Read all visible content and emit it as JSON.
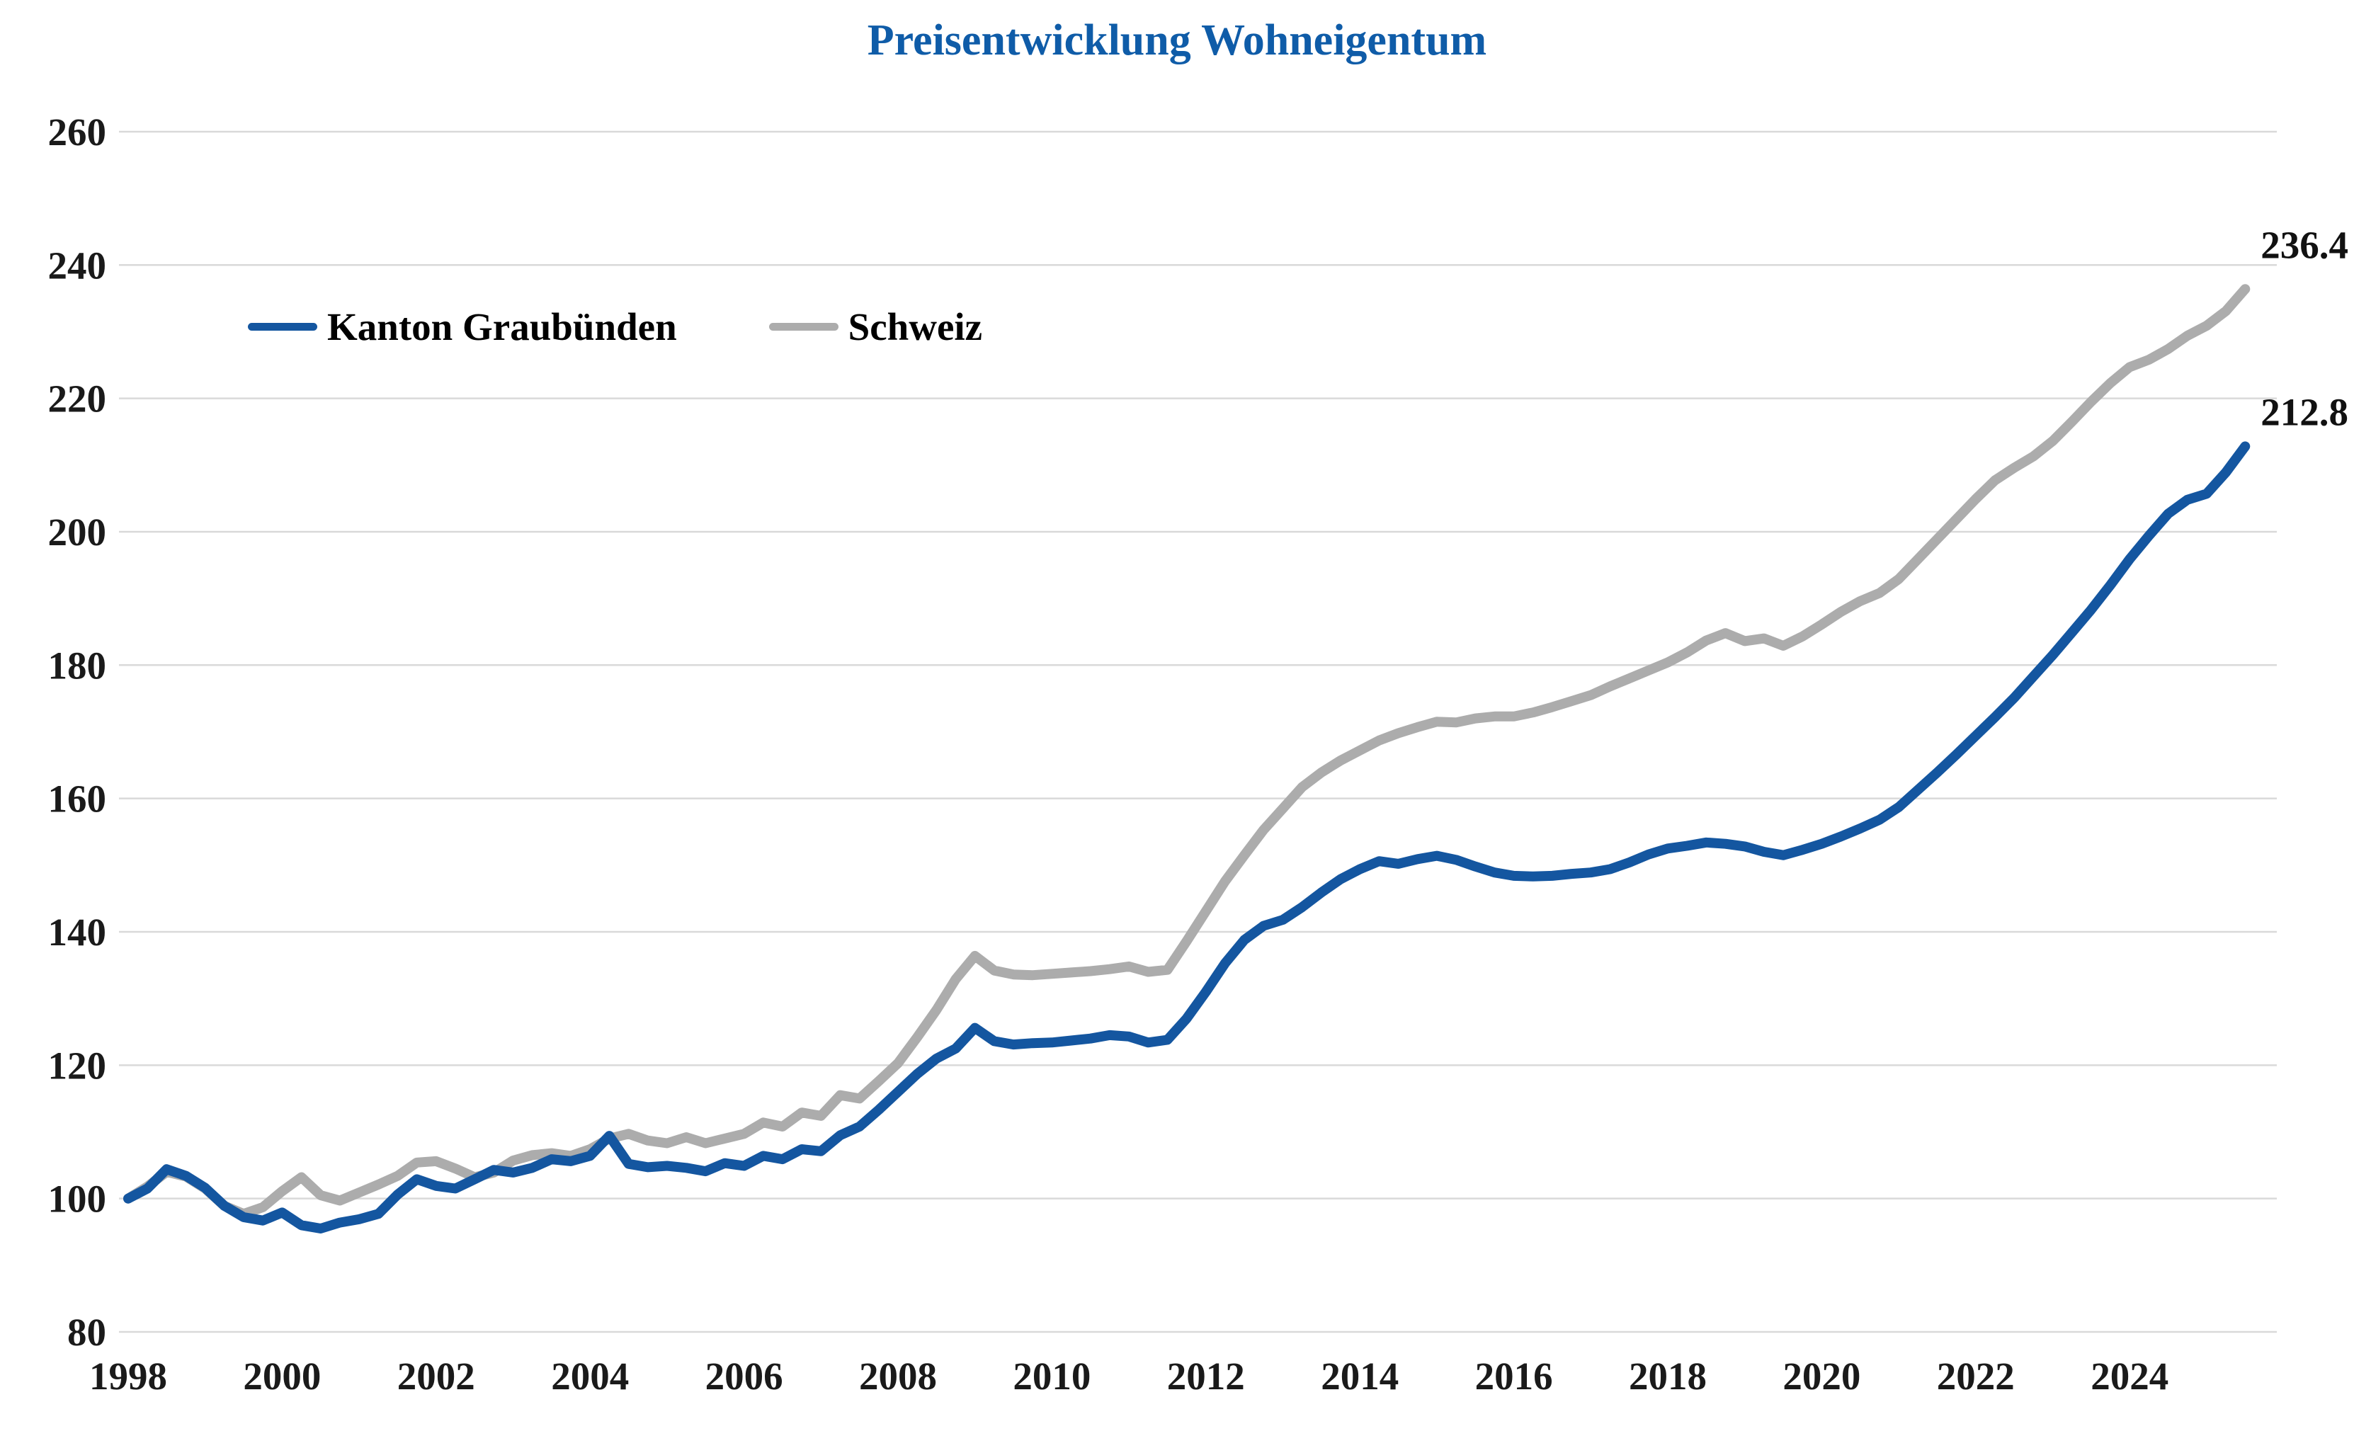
{
  "title": "Preisentwicklung Wohneigentum",
  "colors": {
    "title": "#0F5CA8",
    "graubuenden_line": "#1456A0",
    "schweiz_line": "#ACACAC",
    "gridline": "#D9D9D9",
    "tick_text": "#1A1A1A"
  },
  "legend": {
    "item1": "Kanton Graubünden",
    "item2": "Schweiz"
  },
  "end_labels": {
    "schweiz": "236.4",
    "graubuenden": "212.8"
  },
  "chart_data": {
    "type": "line",
    "title": "Preisentwicklung Wohneigentum",
    "x_start": 1998.0,
    "x_step": 0.25,
    "xlabel": "",
    "ylabel": "",
    "ylim": [
      80,
      260
    ],
    "y_ticks": [
      80,
      100,
      120,
      140,
      160,
      180,
      200,
      220,
      240,
      260
    ],
    "x_ticks": [
      1998,
      2000,
      2002,
      2004,
      2006,
      2008,
      2010,
      2012,
      2014,
      2016,
      2018,
      2020,
      2022,
      2024
    ],
    "grid": "horizontal",
    "legend_position": "inside-top-left",
    "series": [
      {
        "name": "Kanton Graubünden",
        "color": "#1456A0",
        "end_label": "212.8",
        "values": [
          100.0,
          101.5,
          104.4,
          103.4,
          101.6,
          98.9,
          97.2,
          96.7,
          97.9,
          96.0,
          95.5,
          96.4,
          96.9,
          97.7,
          100.6,
          102.9,
          101.9,
          101.5,
          102.9,
          104.3,
          103.9,
          104.6,
          105.9,
          105.6,
          106.4,
          109.4,
          105.2,
          104.7,
          104.9,
          104.6,
          104.1,
          105.3,
          104.9,
          106.4,
          105.9,
          107.4,
          107.1,
          109.5,
          110.8,
          113.3,
          116.0,
          118.7,
          121.0,
          122.5,
          125.6,
          123.6,
          123.1,
          123.3,
          123.4,
          123.7,
          124.0,
          124.5,
          124.3,
          123.4,
          123.8,
          127.0,
          131.0,
          135.3,
          138.8,
          140.9,
          141.8,
          143.7,
          145.9,
          147.9,
          149.4,
          150.6,
          150.2,
          150.9,
          151.4,
          150.8,
          149.8,
          148.9,
          148.4,
          148.3,
          148.4,
          148.7,
          148.9,
          149.4,
          150.4,
          151.6,
          152.5,
          152.9,
          153.4,
          153.2,
          152.8,
          152.0,
          151.5,
          152.3,
          153.2,
          154.3,
          155.5,
          156.8,
          158.7,
          161.3,
          163.9,
          166.6,
          169.4,
          172.2,
          175.1,
          178.3,
          181.5,
          184.9,
          188.3,
          192.0,
          195.9,
          199.4,
          202.7,
          204.8,
          205.7,
          208.9,
          212.8
        ]
      },
      {
        "name": "Schweiz",
        "color": "#ACACAC",
        "end_label": "236.4",
        "values": [
          100.0,
          101.8,
          104.0,
          103.3,
          101.5,
          98.9,
          97.7,
          98.7,
          101.1,
          103.2,
          100.5,
          99.7,
          100.9,
          102.1,
          103.4,
          105.4,
          105.6,
          104.5,
          103.2,
          103.9,
          105.7,
          106.5,
          106.8,
          106.4,
          107.4,
          109.0,
          109.7,
          108.7,
          108.3,
          109.2,
          108.3,
          109.0,
          109.7,
          111.4,
          110.8,
          112.9,
          112.4,
          115.5,
          115.0,
          117.6,
          120.3,
          124.2,
          128.3,
          132.9,
          136.4,
          134.2,
          133.6,
          133.5,
          133.7,
          133.9,
          134.1,
          134.4,
          134.8,
          134.0,
          134.3,
          138.6,
          143.1,
          147.6,
          151.5,
          155.3,
          158.5,
          161.7,
          163.9,
          165.7,
          167.2,
          168.7,
          169.8,
          170.7,
          171.5,
          171.4,
          172.0,
          172.3,
          172.3,
          172.9,
          173.7,
          174.6,
          175.5,
          176.8,
          178.0,
          179.2,
          180.4,
          181.9,
          183.7,
          184.8,
          183.6,
          184.0,
          182.9,
          184.3,
          186.1,
          188.0,
          189.6,
          190.8,
          192.9,
          195.9,
          198.9,
          201.9,
          204.9,
          207.7,
          209.6,
          211.3,
          213.6,
          216.5,
          219.5,
          222.3,
          224.7,
          225.8,
          227.4,
          229.4,
          230.9,
          233.1,
          236.4
        ]
      }
    ]
  }
}
